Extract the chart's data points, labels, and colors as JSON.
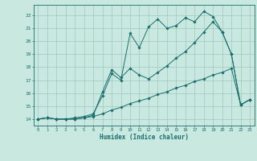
{
  "title": "",
  "xlabel": "Humidex (Indice chaleur)",
  "bg_color": "#c8e8e0",
  "grid_color": "#a0c8c0",
  "line_color": "#1a6e6e",
  "xlim": [
    -0.5,
    23.5
  ],
  "ylim": [
    13.5,
    22.8
  ],
  "xticks": [
    0,
    1,
    2,
    3,
    4,
    5,
    6,
    7,
    8,
    9,
    10,
    11,
    12,
    13,
    14,
    15,
    16,
    17,
    18,
    19,
    20,
    21,
    22,
    23
  ],
  "yticks": [
    14,
    15,
    16,
    17,
    18,
    19,
    20,
    21,
    22
  ],
  "line1_x": [
    0,
    1,
    2,
    3,
    4,
    5,
    6,
    7,
    8,
    9,
    10,
    11,
    12,
    13,
    14,
    15,
    16,
    17,
    18,
    19,
    20,
    21,
    22,
    23
  ],
  "line1_y": [
    14.0,
    14.1,
    14.0,
    14.0,
    14.0,
    14.1,
    14.2,
    14.4,
    14.7,
    14.9,
    15.2,
    15.4,
    15.6,
    15.9,
    16.1,
    16.4,
    16.6,
    16.9,
    17.1,
    17.4,
    17.6,
    17.9,
    15.1,
    15.5
  ],
  "line2_x": [
    0,
    1,
    2,
    3,
    4,
    5,
    6,
    7,
    8,
    9,
    10,
    11,
    12,
    13,
    14,
    15,
    16,
    17,
    18,
    19,
    20,
    21,
    22,
    23
  ],
  "line2_y": [
    14.0,
    14.1,
    14.0,
    14.0,
    14.1,
    14.2,
    14.4,
    15.8,
    17.5,
    17.0,
    20.6,
    19.5,
    21.1,
    21.7,
    21.0,
    21.2,
    21.8,
    21.5,
    22.3,
    21.9,
    20.7,
    19.0,
    15.1,
    15.5
  ],
  "line3_x": [
    0,
    1,
    2,
    3,
    4,
    5,
    6,
    7,
    8,
    9,
    10,
    11,
    12,
    13,
    14,
    15,
    16,
    17,
    18,
    19,
    20,
    21,
    22,
    23
  ],
  "line3_y": [
    14.0,
    14.1,
    14.0,
    14.0,
    14.0,
    14.1,
    14.3,
    16.1,
    17.8,
    17.2,
    17.9,
    17.4,
    17.1,
    17.6,
    18.1,
    18.7,
    19.2,
    19.9,
    20.7,
    21.5,
    20.7,
    19.0,
    15.1,
    15.5
  ]
}
